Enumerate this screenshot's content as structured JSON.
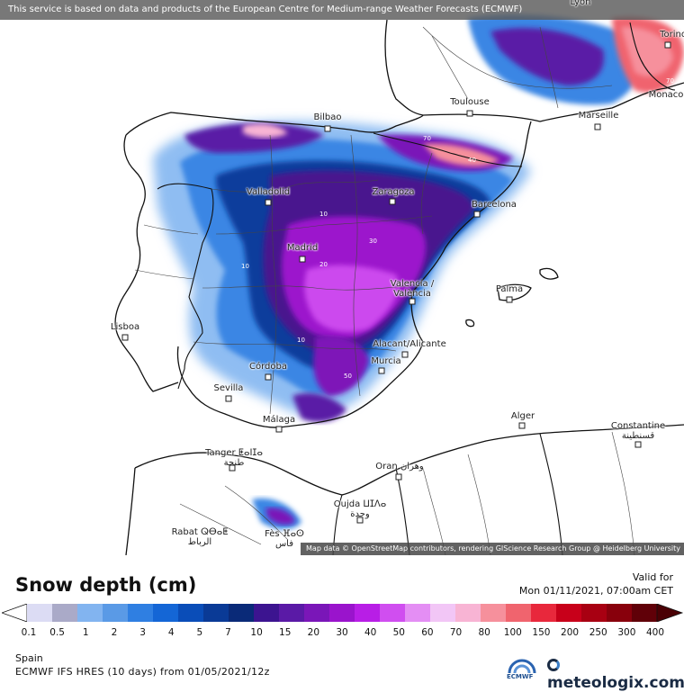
{
  "header": {
    "notice": "This service is based on data and products of the European Centre for Medium-range Weather Forecasts (ECMWF)"
  },
  "attribution": "Map data © OpenStreetMap contributors, rendering GIScience Research Group @ Heidelberg University",
  "cities": [
    {
      "name": "Lyon"
    },
    {
      "name": "Torino"
    },
    {
      "name": "Toulouse"
    },
    {
      "name": "Marseille"
    },
    {
      "name": "Monaco"
    },
    {
      "name": "Bilbao"
    },
    {
      "name": "Valladolid"
    },
    {
      "name": "Zaragoza"
    },
    {
      "name": "Barcelona"
    },
    {
      "name": "Madrid"
    },
    {
      "name": "Valencia / València"
    },
    {
      "name": "Palma"
    },
    {
      "name": "Lisboa"
    },
    {
      "name": "Alacant/Alicante"
    },
    {
      "name": "Murcia"
    },
    {
      "name": "Córdoba"
    },
    {
      "name": "Sevilla"
    },
    {
      "name": "Málaga"
    },
    {
      "name": "Alger"
    },
    {
      "name": "Constantine قسنطينة"
    },
    {
      "name": "Tanger ⵟⴰⵏⵊⴰ طنجة"
    },
    {
      "name": "Oran وهران"
    },
    {
      "name": "Oujda ⵡⵊⴷⴰ وجدة"
    },
    {
      "name": "Rabat ⵕⴱⴰⵟ الرباط"
    },
    {
      "name": "Fès ⴼⴰⵙ فاس"
    }
  ],
  "legend": {
    "title": "Snow depth (cm)",
    "colors": [
      "#dcdcf4",
      "#aaaac8",
      "#82b4f0",
      "#5a9ae6",
      "#2f7fe2",
      "#1466d6",
      "#0a4db8",
      "#0a3a96",
      "#0a2a78",
      "#3c1490",
      "#5a1aa6",
      "#7a16b8",
      "#9a14cc",
      "#b81ee6",
      "#d04ef0",
      "#e48ef4",
      "#f2c6f6",
      "#f8b4d4",
      "#f6909c",
      "#f0646e",
      "#e8283c",
      "#c8001a",
      "#a80012",
      "#88000c",
      "#600008"
    ],
    "ticks": [
      "0.1",
      "0.5",
      "1",
      "2",
      "3",
      "4",
      "5",
      "7",
      "10",
      "15",
      "20",
      "30",
      "40",
      "50",
      "60",
      "70",
      "80",
      "100",
      "150",
      "200",
      "250",
      "300",
      "400"
    ]
  },
  "valid": {
    "label": "Valid for",
    "time": "Mon 01/11/2021, 07:00am CET"
  },
  "region": "Spain",
  "model": "ECMWF IFS HRES (10 days) from 01/05/2021/12z",
  "logos": {
    "ecmwf": "ECMWF",
    "meteologix": "meteologix.com"
  }
}
